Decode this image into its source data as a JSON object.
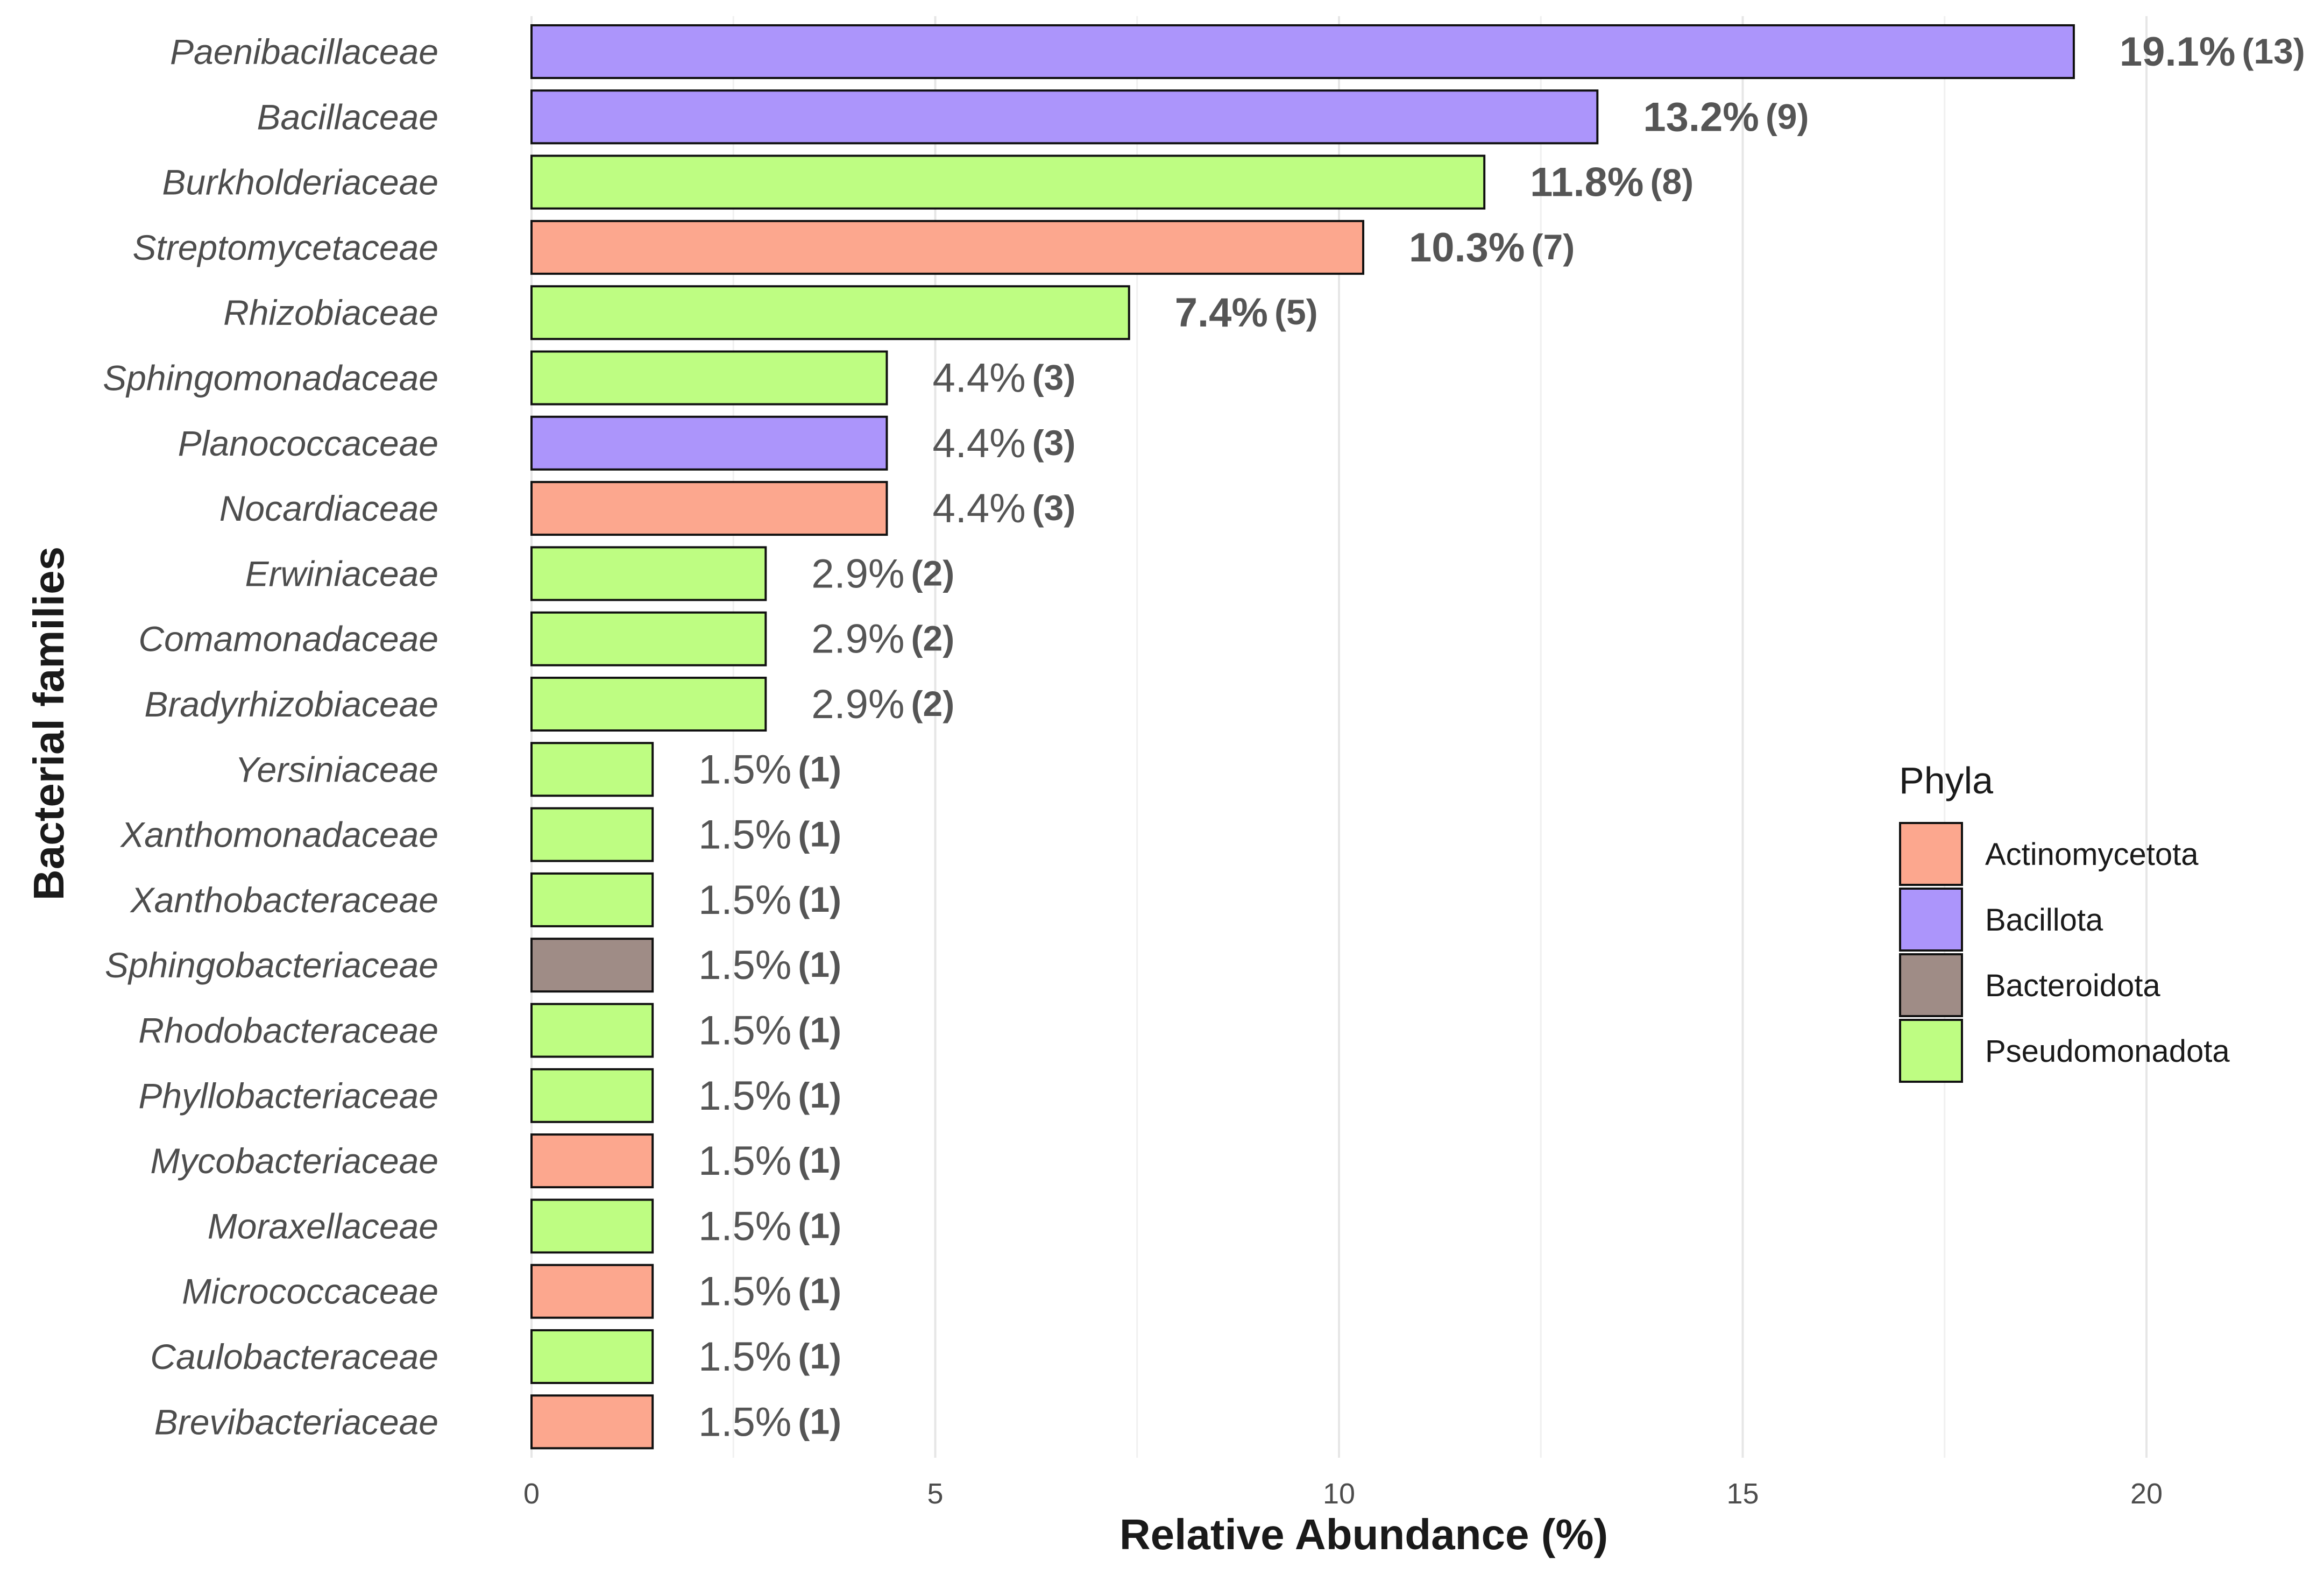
{
  "chart_data": {
    "type": "bar",
    "orientation": "horizontal",
    "title": "",
    "xlabel": "Relative Abundance (%)",
    "ylabel": "Bacterial families",
    "xlim": [
      0,
      20
    ],
    "xticks": [
      0,
      5,
      10,
      15,
      20
    ],
    "grid": true,
    "legend_title": "Phyla",
    "legend_position": "right",
    "phyla": [
      {
        "name": "Actinomycetota",
        "color": "#FCA78E"
      },
      {
        "name": "Bacillota",
        "color": "#AC95FB"
      },
      {
        "name": "Bacteroidota",
        "color": "#9F8C86"
      },
      {
        "name": "Pseudomonadota",
        "color": "#BEFD82"
      }
    ],
    "categories": [
      "Paenibacillaceae",
      "Bacillaceae",
      "Burkholderiaceae",
      "Streptomycetaceae",
      "Rhizobiaceae",
      "Sphingomonadaceae",
      "Planococcaceae",
      "Nocardiaceae",
      "Erwiniaceae",
      "Comamonadaceae",
      "Bradyrhizobiaceae",
      "Yersiniaceae",
      "Xanthomonadaceae",
      "Xanthobacteraceae",
      "Sphingobacteriaceae",
      "Rhodobacteraceae",
      "Phyllobacteriaceae",
      "Mycobacteriaceae",
      "Moraxellaceae",
      "Micrococcaceae",
      "Caulobacteraceae",
      "Brevibacteriaceae"
    ],
    "values": [
      19.1,
      13.2,
      11.8,
      10.3,
      7.4,
      4.4,
      4.4,
      4.4,
      2.9,
      2.9,
      2.9,
      1.5,
      1.5,
      1.5,
      1.5,
      1.5,
      1.5,
      1.5,
      1.5,
      1.5,
      1.5,
      1.5
    ],
    "counts": [
      13,
      9,
      8,
      7,
      5,
      3,
      3,
      3,
      2,
      2,
      2,
      1,
      1,
      1,
      1,
      1,
      1,
      1,
      1,
      1,
      1,
      1
    ],
    "phylum": [
      "Bacillota",
      "Bacillota",
      "Pseudomonadota",
      "Actinomycetota",
      "Pseudomonadota",
      "Pseudomonadota",
      "Bacillota",
      "Actinomycetota",
      "Pseudomonadota",
      "Pseudomonadota",
      "Pseudomonadota",
      "Pseudomonadota",
      "Pseudomonadota",
      "Pseudomonadota",
      "Bacteroidota",
      "Pseudomonadota",
      "Pseudomonadota",
      "Actinomycetota",
      "Pseudomonadota",
      "Actinomycetota",
      "Pseudomonadota",
      "Actinomycetota"
    ],
    "value_labels": [
      "19.1%",
      "13.2%",
      "11.8%",
      "10.3%",
      "7.4%",
      "4.4%",
      "4.4%",
      "4.4%",
      "2.9%",
      "2.9%",
      "2.9%",
      "1.5%",
      "1.5%",
      "1.5%",
      "1.5%",
      "1.5%",
      "1.5%",
      "1.5%",
      "1.5%",
      "1.5%",
      "1.5%",
      "1.5%"
    ],
    "count_labels": [
      "(13)",
      "(9)",
      "(8)",
      "(7)",
      "(5)",
      "(3)",
      "(3)",
      "(3)",
      "(2)",
      "(2)",
      "(2)",
      "(1)",
      "(1)",
      "(1)",
      "(1)",
      "(1)",
      "(1)",
      "(1)",
      "(1)",
      "(1)",
      "(1)",
      "(1)"
    ],
    "bold_value_labels": [
      true,
      true,
      true,
      true,
      true,
      false,
      false,
      false,
      false,
      false,
      false,
      false,
      false,
      false,
      false,
      false,
      false,
      false,
      false,
      false,
      false,
      false
    ]
  }
}
